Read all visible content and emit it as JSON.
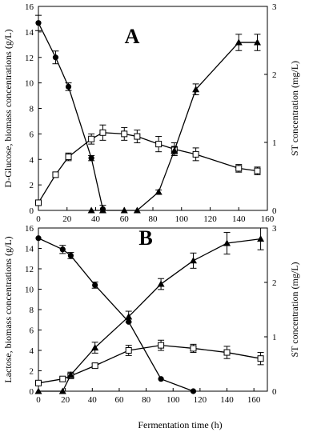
{
  "figure": {
    "xlabel": "Fermentation time (h)"
  },
  "chart_data": [
    {
      "type": "line",
      "panel_label": "A",
      "ylabel": "D-Glucose, biomass concentrations (g/L)",
      "y2label": "ST concentration (mg/L)",
      "xlim": [
        0,
        160
      ],
      "ylim": [
        0,
        16
      ],
      "y2lim": [
        0,
        3
      ],
      "xticks": [
        0,
        20,
        40,
        60,
        80,
        100,
        120,
        140,
        160
      ],
      "yticks": [
        0,
        2,
        4,
        6,
        8,
        10,
        12,
        14,
        16
      ],
      "y2ticks": [
        0,
        1,
        2,
        3
      ],
      "grid": false,
      "series": [
        {
          "marker": "filled-circle",
          "axis": "left",
          "x": [
            0,
            12,
            21,
            37,
            45
          ],
          "y": [
            14.7,
            12.0,
            9.7,
            4.1,
            0.1
          ],
          "err": [
            0.6,
            0.5,
            0.3,
            0.2,
            0.3
          ]
        },
        {
          "marker": "open-square",
          "axis": "left",
          "x": [
            0,
            12,
            21,
            37,
            45,
            60,
            69,
            84,
            95,
            110,
            140,
            153
          ],
          "y": [
            0.6,
            2.8,
            4.2,
            5.6,
            6.1,
            6.0,
            5.8,
            5.2,
            4.8,
            4.4,
            3.3,
            3.1
          ],
          "err": [
            0.2,
            0.2,
            0.3,
            0.4,
            0.6,
            0.5,
            0.5,
            0.6,
            0.5,
            0.5,
            0.3,
            0.3
          ]
        },
        {
          "marker": "filled-triangle",
          "axis": "right",
          "x": [
            37,
            45,
            60,
            69,
            84,
            95,
            110,
            140,
            153
          ],
          "y": [
            0.0,
            0.0,
            0.0,
            0.0,
            0.27,
            0.88,
            1.78,
            2.47,
            2.47
          ],
          "err": [
            0,
            0,
            0,
            0,
            0.03,
            0.05,
            0.08,
            0.12,
            0.12
          ]
        }
      ]
    },
    {
      "type": "line",
      "panel_label": "B",
      "ylabel": "Lactose, biomass concentrations (g/L)",
      "y2label": "ST concentration (mg/L)",
      "xlim": [
        0,
        170
      ],
      "ylim": [
        0,
        16
      ],
      "y2lim": [
        0,
        3
      ],
      "xticks": [
        0,
        20,
        40,
        60,
        80,
        100,
        120,
        140,
        160
      ],
      "yticks": [
        0,
        2,
        4,
        6,
        8,
        10,
        12,
        14,
        16
      ],
      "y2ticks": [
        0,
        1,
        2,
        3
      ],
      "grid": false,
      "series": [
        {
          "marker": "filled-circle",
          "axis": "left",
          "x": [
            0,
            18,
            24,
            42,
            67,
            91,
            115
          ],
          "y": [
            15.0,
            13.9,
            13.3,
            10.4,
            6.8,
            1.2,
            0.0
          ],
          "err": [
            0,
            0.4,
            0.3,
            0.3,
            0,
            0,
            0
          ]
        },
        {
          "marker": "open-square",
          "axis": "left",
          "x": [
            0,
            18,
            24,
            42,
            67,
            91,
            115,
            140,
            165
          ],
          "y": [
            0.8,
            1.2,
            1.5,
            2.5,
            4.0,
            4.5,
            4.2,
            3.8,
            3.2
          ],
          "err": [
            0.2,
            0.2,
            0.2,
            0.2,
            0.5,
            0.5,
            0.4,
            0.6,
            0.6
          ]
        },
        {
          "marker": "filled-triangle",
          "axis": "right",
          "x": [
            0,
            18,
            24,
            42,
            67,
            91,
            115,
            140,
            165
          ],
          "y": [
            0.0,
            0.0,
            0.3,
            0.8,
            1.37,
            1.97,
            2.4,
            2.72,
            2.8
          ],
          "err": [
            0,
            0,
            0.05,
            0.1,
            0.1,
            0.1,
            0.14,
            0.2,
            0.2
          ]
        }
      ]
    }
  ]
}
